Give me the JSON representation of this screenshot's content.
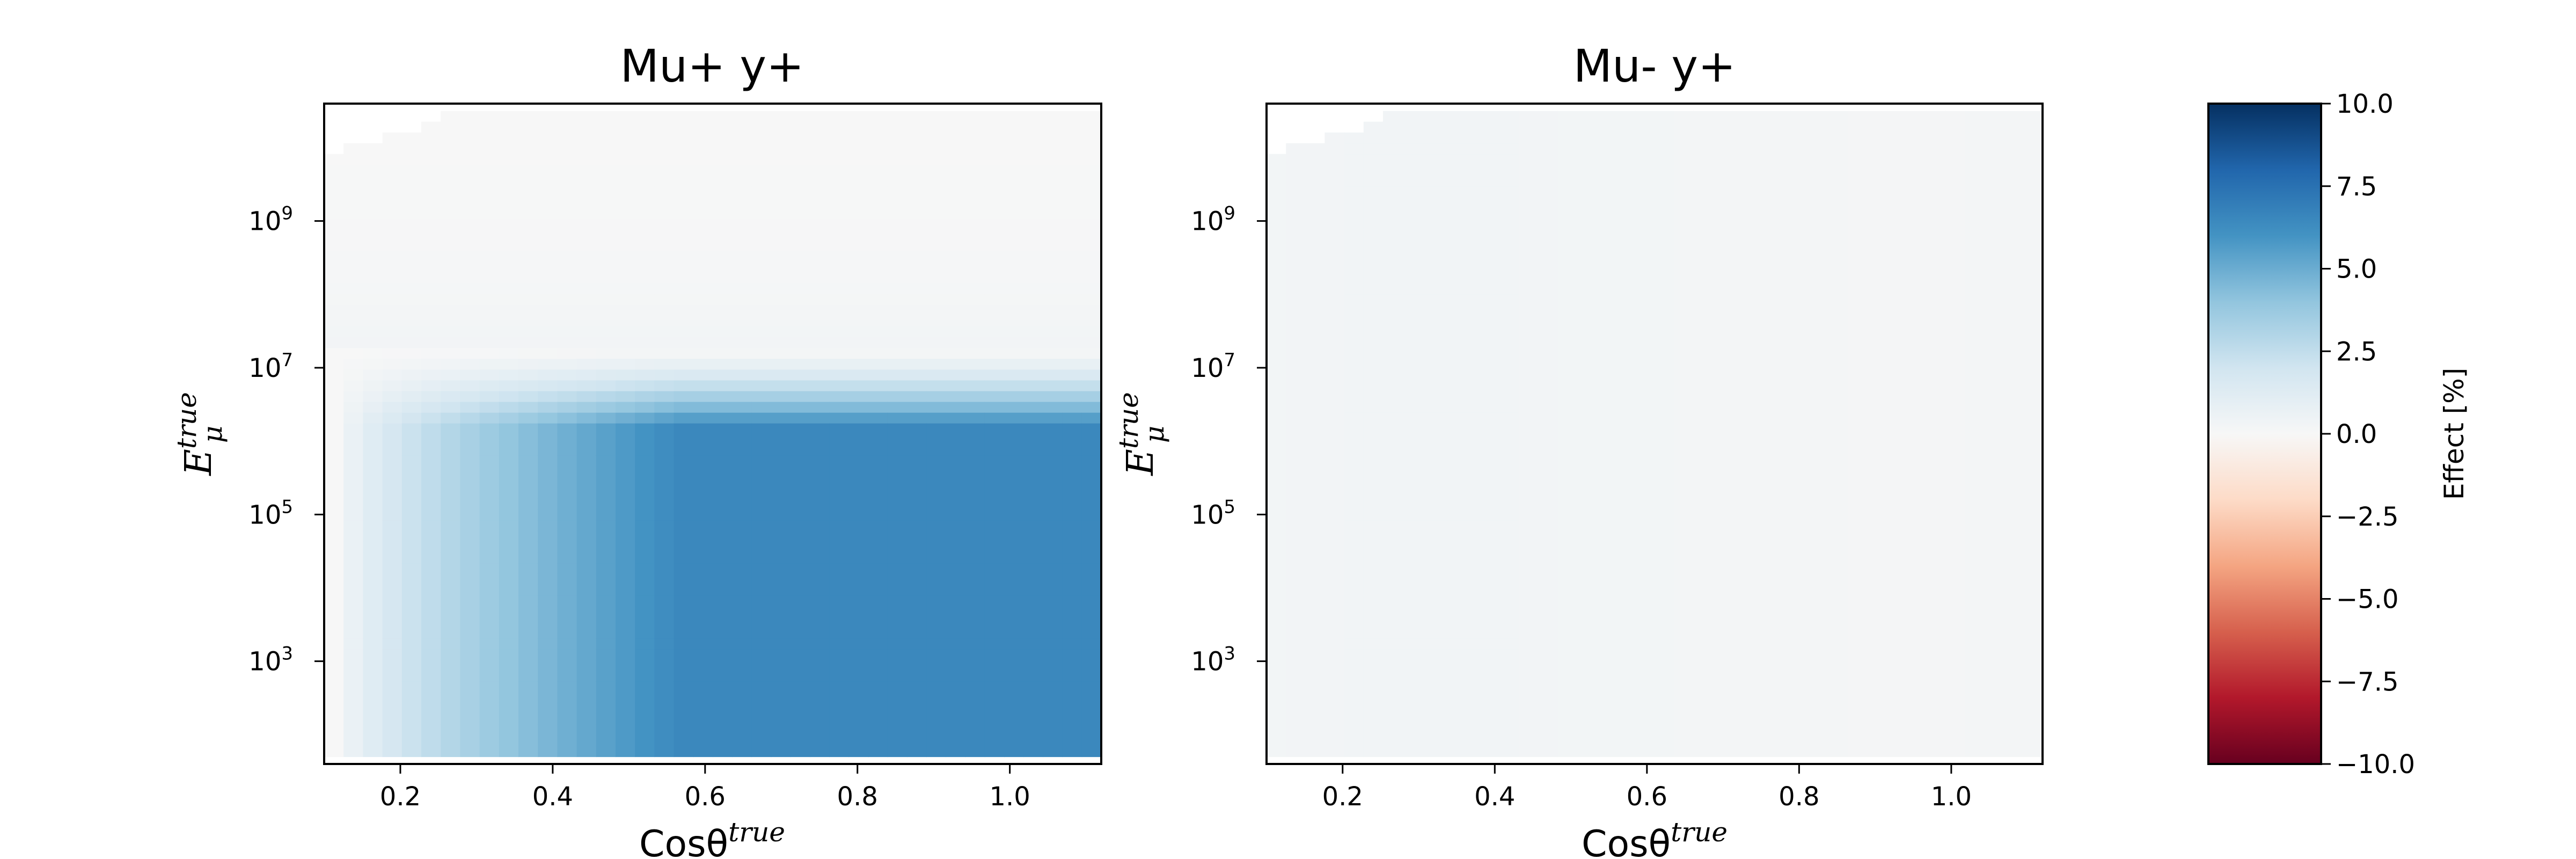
{
  "chart_data": [
    {
      "type": "heatmap",
      "title": "Mu+ y+",
      "xlabel": "Cosθ",
      "xlabel_sup": "true",
      "ylabel": "E",
      "ylabel_sub": "μ",
      "ylabel_sup": "true",
      "x_scale": "linear",
      "y_scale": "log",
      "xlim": [
        0.1,
        1.12
      ],
      "ylim_exp": [
        1.6,
        10.6
      ],
      "x_ticks": [
        0.2,
        0.4,
        0.6,
        0.8,
        1.0
      ],
      "x_tick_labels": [
        "0.2",
        "0.4",
        "0.6",
        "0.8",
        "1.0"
      ],
      "y_ticks_exp": [
        3,
        5,
        7,
        9
      ],
      "y_tick_labels": [
        "10",
        "10",
        "10",
        "10"
      ],
      "y_tick_sups": [
        "3",
        "5",
        "7",
        "9"
      ],
      "data_x_range": [
        0.1,
        1.12
      ],
      "data_y_exp_range": [
        1.7,
        10.5
      ],
      "effect_description_values": {
        "plateau_effect_percent": 6.5,
        "plateau_upper_energy_exp": 6.2,
        "transition_upper_energy_exp": 7.3,
        "onset_cos": 0.12
      }
    },
    {
      "type": "heatmap",
      "title": "Mu- y+",
      "xlabel": "Cosθ",
      "xlabel_sup": "true",
      "ylabel": "E",
      "ylabel_sub": "μ",
      "ylabel_sup": "true",
      "x_scale": "linear",
      "y_scale": "log",
      "xlim": [
        0.1,
        1.12
      ],
      "ylim_exp": [
        1.6,
        10.6
      ],
      "x_ticks": [
        0.2,
        0.4,
        0.6,
        0.8,
        1.0
      ],
      "x_tick_labels": [
        "0.2",
        "0.4",
        "0.6",
        "0.8",
        "1.0"
      ],
      "y_ticks_exp": [
        3,
        5,
        7,
        9
      ],
      "y_tick_labels": [
        "10",
        "10",
        "10",
        "10"
      ],
      "y_tick_sups": [
        "3",
        "5",
        "7",
        "9"
      ],
      "data_x_range": [
        0.1,
        1.12
      ],
      "data_y_exp_range": [
        1.7,
        10.5
      ],
      "effect_description_values": {
        "plateau_effect_percent": 0.3,
        "plateau_upper_energy_exp": 10.5,
        "transition_upper_energy_exp": 10.5,
        "onset_cos": 0.1
      }
    },
    {
      "type": "colorbar",
      "label": "Effect [%]",
      "colormap": "RdBu",
      "vmin": -10.0,
      "vmax": 10.0,
      "ticks": [
        10.0,
        7.5,
        5.0,
        2.5,
        0.0,
        -2.5,
        -5.0,
        -7.5,
        -10.0
      ],
      "tick_labels": [
        "10.0",
        "7.5",
        "5.0",
        "2.5",
        "0.0",
        "−2.5",
        "−5.0",
        "−7.5",
        "−10.0"
      ],
      "colors": [
        "#67001f",
        "#b2182b",
        "#d6604d",
        "#f4a582",
        "#fddbc7",
        "#f7f7f7",
        "#d1e5f0",
        "#92c5de",
        "#4393c3",
        "#2166ac",
        "#053061"
      ]
    }
  ]
}
